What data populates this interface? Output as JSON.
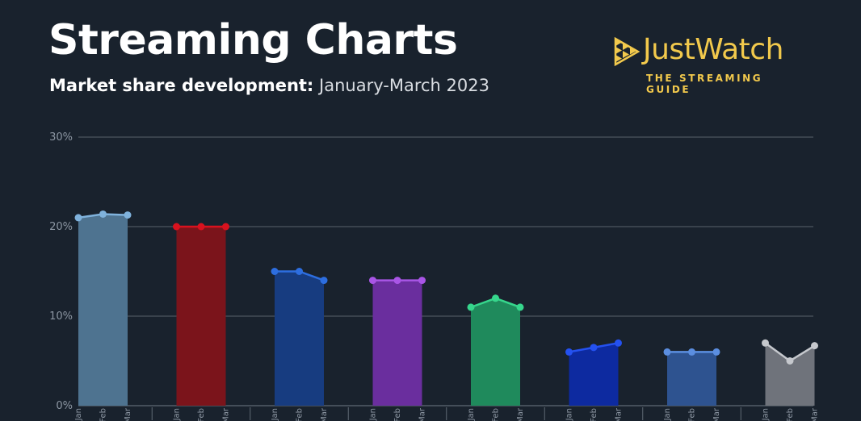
{
  "header": {
    "title": "Streaming Charts",
    "subtitle_label": "Market share development:",
    "subtitle_period": "January-March 2023"
  },
  "brand": {
    "name": "JustWatch",
    "tagline": "THE STREAMING GUIDE",
    "color": "#f2c94c"
  },
  "chart_data": {
    "type": "area",
    "title": "Streaming Charts",
    "subtitle": "Market share development: January-March 2023",
    "y_ticks": [
      "30%",
      "20%",
      "10%",
      "0%"
    ],
    "ylim": [
      0,
      30
    ],
    "grid": true,
    "months": [
      "Jan",
      "Feb",
      "Mar"
    ],
    "series": [
      {
        "values": [
          21,
          21.4,
          21.3
        ],
        "color": "#4e7390",
        "line": "#7fb2dc"
      },
      {
        "values": [
          20,
          20,
          20
        ],
        "color": "#7b141b",
        "line": "#d8121e"
      },
      {
        "values": [
          15,
          15,
          14
        ],
        "color": "#173c80",
        "line": "#2d6ee0"
      },
      {
        "values": [
          14,
          14,
          14
        ],
        "color": "#6a2e9e",
        "line": "#a955e6"
      },
      {
        "values": [
          11,
          12,
          11
        ],
        "color": "#1f8a5c",
        "line": "#36d68c"
      },
      {
        "values": [
          6,
          6.5,
          7
        ],
        "color": "#0d2aa0",
        "line": "#2451f0"
      },
      {
        "values": [
          6,
          6,
          6
        ],
        "color": "#2e5390",
        "line": "#5b8ee0"
      },
      {
        "values": [
          7,
          5,
          6.7
        ],
        "color": "#6f737b",
        "line": "#c5c8cd"
      }
    ]
  }
}
